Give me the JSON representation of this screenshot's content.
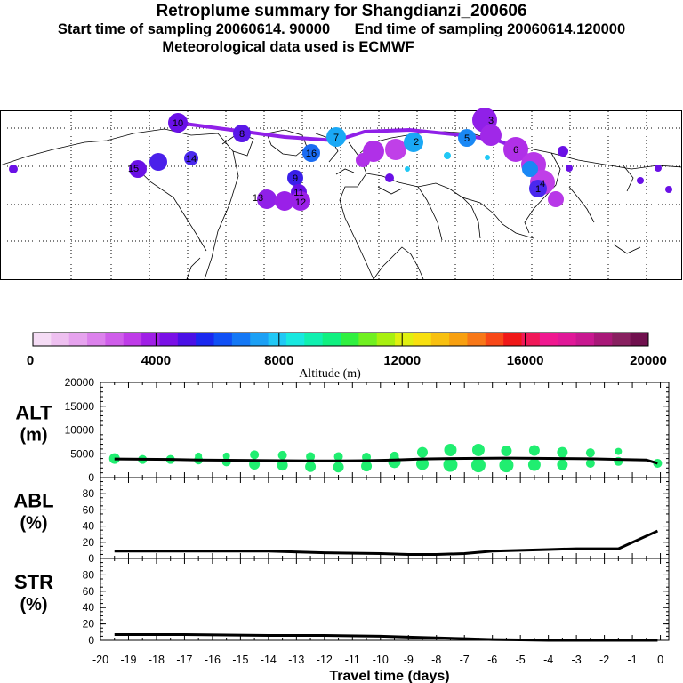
{
  "header": {
    "title": "Retroplume summary for Shangdianzi_200606",
    "sampling": "Start time of sampling 20060614. 90000      End time of sampling 20060614.120000",
    "met": "Meteorological data used is ECMWF"
  },
  "colorbar": {
    "ticks": [
      "0",
      "4000",
      "8000",
      "12000",
      "16000",
      "20000"
    ],
    "label": "Altitude (m)",
    "colors": [
      "#f5dcf5",
      "#eec0f0",
      "#e6a3ee",
      "#dc82ec",
      "#cf5eea",
      "#bf3ce8",
      "#a01fe6",
      "#7a10e6",
      "#4a10e6",
      "#1a28ef",
      "#1050f5",
      "#1478f5",
      "#1ca0f5",
      "#20c8f5",
      "#18e8e0",
      "#10f0b0",
      "#10f080",
      "#30f040",
      "#70f020",
      "#a8f010",
      "#e0f010",
      "#f8e010",
      "#f8c010",
      "#f8a010",
      "#f87818",
      "#f84818",
      "#f01818",
      "#f01858",
      "#f01890",
      "#e01898",
      "#c81890",
      "#a81878",
      "#882060",
      "#70104e"
    ]
  },
  "map_labels": [
    "10",
    "8",
    "7",
    "9",
    "11",
    "12",
    "13",
    "14",
    "15",
    "16",
    "6",
    "5",
    "4",
    "3",
    "2",
    "1"
  ],
  "chart_data": [
    {
      "type": "scatter",
      "panel": "ALT",
      "ylabel_line1": "ALT",
      "ylabel_line2": "(m)",
      "ylim": [
        0,
        20000
      ],
      "yticks": [
        "20000",
        "15000",
        "10000",
        "5000",
        "0"
      ],
      "series": [
        {
          "name": "mean altitude",
          "x": [
            -19.5,
            -18.5,
            -17.5,
            -16.5,
            -15.5,
            -14.5,
            -13.5,
            -12.5,
            -11.5,
            -10.5,
            -9.5,
            -8.5,
            -7.5,
            -6.5,
            -5.5,
            -4.5,
            -3.5,
            -2.5,
            -1.5,
            -0.5,
            -0.1
          ],
          "y": [
            3900,
            3850,
            3800,
            3700,
            3650,
            3600,
            3550,
            3500,
            3500,
            3550,
            3700,
            3900,
            4000,
            4050,
            4100,
            4050,
            4000,
            3950,
            3800,
            3700,
            3000
          ]
        },
        {
          "name": "clusters",
          "points": [
            [
              -19.5,
              4000,
              6
            ],
            [
              -18.5,
              3800,
              5
            ],
            [
              -17.5,
              3800,
              5
            ],
            [
              -16.5,
              3700,
              5
            ],
            [
              -16.5,
              4500,
              4
            ],
            [
              -15.5,
              3300,
              5
            ],
            [
              -15.5,
              4500,
              4
            ],
            [
              -14.5,
              2800,
              6
            ],
            [
              -14.5,
              4800,
              5
            ],
            [
              -13.5,
              2600,
              6
            ],
            [
              -13.5,
              4700,
              5
            ],
            [
              -12.5,
              2300,
              6
            ],
            [
              -12.5,
              4400,
              5
            ],
            [
              -11.5,
              2200,
              6
            ],
            [
              -11.5,
              4400,
              5
            ],
            [
              -10.5,
              2400,
              6
            ],
            [
              -10.5,
              4300,
              5
            ],
            [
              -9.5,
              3300,
              7
            ],
            [
              -9.5,
              4500,
              5
            ],
            [
              -8.5,
              2900,
              7
            ],
            [
              -8.5,
              5300,
              6
            ],
            [
              -7.5,
              2700,
              8
            ],
            [
              -7.5,
              5800,
              7
            ],
            [
              -6.5,
              2600,
              8
            ],
            [
              -6.5,
              5800,
              7
            ],
            [
              -5.5,
              2600,
              8
            ],
            [
              -5.5,
              5600,
              6
            ],
            [
              -4.5,
              2700,
              7
            ],
            [
              -4.5,
              5700,
              6
            ],
            [
              -3.5,
              2700,
              6
            ],
            [
              -3.5,
              5300,
              6
            ],
            [
              -2.5,
              3000,
              5
            ],
            [
              -2.5,
              5200,
              5
            ],
            [
              -1.5,
              3400,
              5
            ],
            [
              -1.5,
              5500,
              4
            ],
            [
              -0.1,
              3000,
              5
            ]
          ]
        }
      ]
    },
    {
      "type": "line",
      "panel": "ABL",
      "ylabel_line1": "ABL",
      "ylabel_line2": "(%)",
      "ylim": [
        0,
        100
      ],
      "yticks": [
        "80",
        "60",
        "40",
        "20",
        "0"
      ],
      "x": [
        -19.5,
        -17,
        -14,
        -12,
        -10,
        -9,
        -8,
        -7,
        -6,
        -5,
        -4,
        -3,
        -2,
        -1.5,
        -0.1
      ],
      "y": [
        9,
        9,
        9,
        7,
        6,
        5,
        5,
        6,
        9,
        10,
        11,
        12,
        12,
        12,
        34
      ]
    },
    {
      "type": "line",
      "panel": "STR",
      "ylabel_line1": "STR",
      "ylabel_line2": "(%)",
      "ylim": [
        0,
        100
      ],
      "yticks": [
        "80",
        "60",
        "40",
        "20",
        "0"
      ],
      "x": [
        -19.5,
        -17,
        -14,
        -12,
        -10,
        -9,
        -8,
        -7,
        -6,
        -5,
        -4,
        -3,
        -2,
        -1,
        -0.1
      ],
      "y": [
        7,
        7,
        6,
        6,
        5,
        4,
        3,
        2,
        1,
        0.5,
        0,
        0,
        0,
        0,
        0
      ]
    }
  ],
  "xaxis": {
    "ticks": [
      "-20",
      "-19",
      "-18",
      "-17",
      "-16",
      "-15",
      "-14",
      "-13",
      "-12",
      "-11",
      "-10",
      "-9",
      "-8",
      "-7",
      "-6",
      "-5",
      "-4",
      "-3",
      "-2",
      "-1",
      "0"
    ],
    "label": "Travel time (days)",
    "xlim": [
      -20,
      0.3
    ]
  }
}
